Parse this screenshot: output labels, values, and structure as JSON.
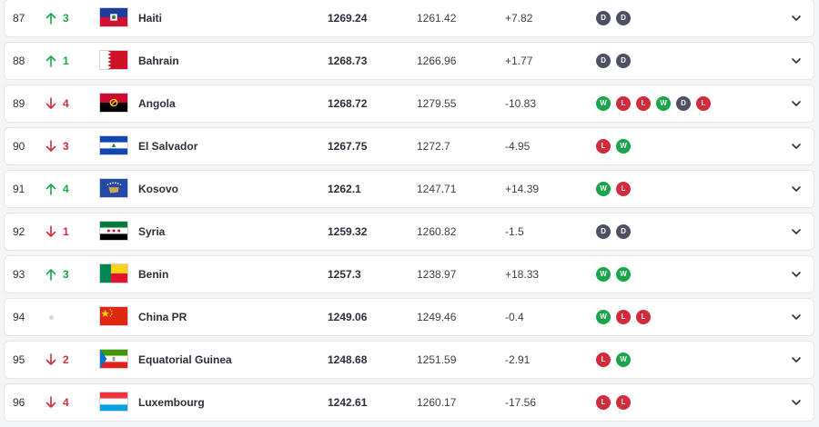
{
  "colors": {
    "up": "#1aa54a",
    "down": "#d22b3b",
    "win": "#1aa54a",
    "loss": "#d22b3b",
    "draw": "#4c5061"
  },
  "rows": [
    {
      "rank": "87",
      "move": "up",
      "change": "3",
      "team": "Haiti",
      "flag": "haiti-flag",
      "total": "1269.24",
      "previous": "1261.42",
      "diff": "+7.82",
      "form": [
        "D",
        "D"
      ]
    },
    {
      "rank": "88",
      "move": "up",
      "change": "1",
      "team": "Bahrain",
      "flag": "bahrain-flag",
      "total": "1268.73",
      "previous": "1266.96",
      "diff": "+1.77",
      "form": [
        "D",
        "D"
      ]
    },
    {
      "rank": "89",
      "move": "down",
      "change": "4",
      "team": "Angola",
      "flag": "angola-flag",
      "total": "1268.72",
      "previous": "1279.55",
      "diff": "-10.83",
      "form": [
        "W",
        "L",
        "L",
        "W",
        "D",
        "L"
      ]
    },
    {
      "rank": "90",
      "move": "down",
      "change": "3",
      "team": "El Salvador",
      "flag": "el-salvador-flag",
      "total": "1267.75",
      "previous": "1272.7",
      "diff": "-4.95",
      "form": [
        "L",
        "W"
      ]
    },
    {
      "rank": "91",
      "move": "up",
      "change": "4",
      "team": "Kosovo",
      "flag": "kosovo-flag",
      "total": "1262.1",
      "previous": "1247.71",
      "diff": "+14.39",
      "form": [
        "W",
        "L"
      ]
    },
    {
      "rank": "92",
      "move": "down",
      "change": "1",
      "team": "Syria",
      "flag": "syria-flag",
      "total": "1259.32",
      "previous": "1260.82",
      "diff": "-1.5",
      "form": [
        "D",
        "D"
      ]
    },
    {
      "rank": "93",
      "move": "up",
      "change": "3",
      "team": "Benin",
      "flag": "benin-flag",
      "total": "1257.3",
      "previous": "1238.97",
      "diff": "+18.33",
      "form": [
        "W",
        "W"
      ]
    },
    {
      "rank": "94",
      "move": "same",
      "change": "",
      "team": "China PR",
      "flag": "china-flag",
      "total": "1249.06",
      "previous": "1249.46",
      "diff": "-0.4",
      "form": [
        "W",
        "L",
        "L"
      ]
    },
    {
      "rank": "95",
      "move": "down",
      "change": "2",
      "team": "Equatorial Guinea",
      "flag": "equatorial-guinea-flag",
      "total": "1248.68",
      "previous": "1251.59",
      "diff": "-2.91",
      "form": [
        "L",
        "W"
      ]
    },
    {
      "rank": "96",
      "move": "down",
      "change": "4",
      "team": "Luxembourg",
      "flag": "luxembourg-flag",
      "total": "1242.61",
      "previous": "1260.17",
      "diff": "-17.56",
      "form": [
        "L",
        "L"
      ]
    }
  ]
}
